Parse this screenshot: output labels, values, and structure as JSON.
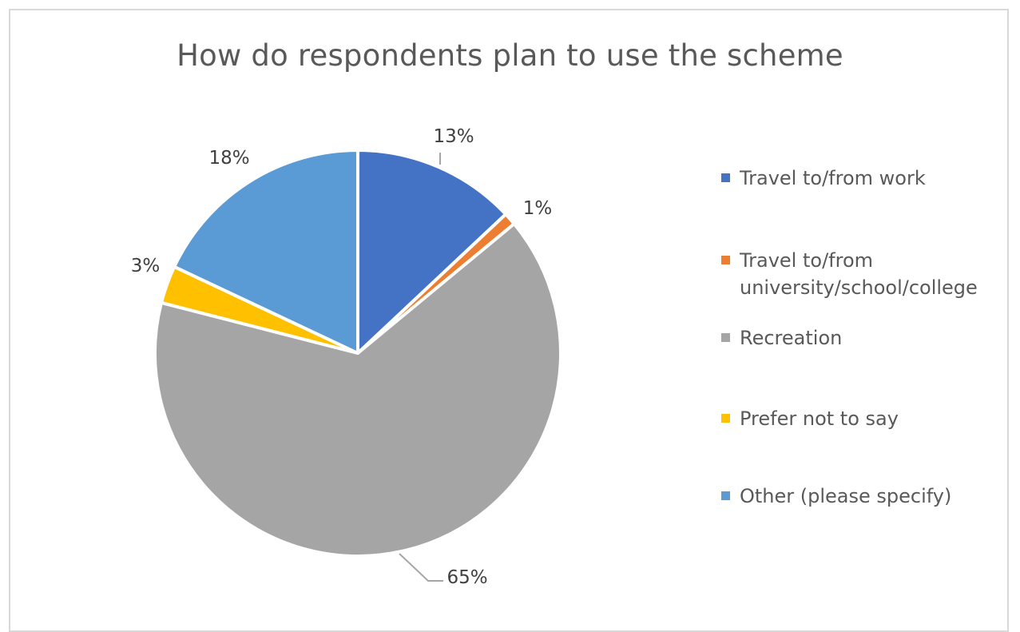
{
  "chart_data": {
    "type": "pie",
    "title": "How do respondents plan to use the scheme",
    "slices": [
      {
        "label": "Travel to/from work",
        "value": 13,
        "data_label": "13%",
        "color": "#4472C4"
      },
      {
        "label": "Travel to/from university/school/college",
        "value": 1,
        "data_label": "1%",
        "color": "#ED7D31"
      },
      {
        "label": "Recreation",
        "value": 65,
        "data_label": "65%",
        "color": "#A5A5A5"
      },
      {
        "label": "Prefer not to say",
        "value": 3,
        "data_label": "3%",
        "color": "#FFC000"
      },
      {
        "label": "Other (please specify)",
        "value": 18,
        "data_label": "18%",
        "color": "#5B9BD5"
      }
    ],
    "legend_position": "right"
  }
}
